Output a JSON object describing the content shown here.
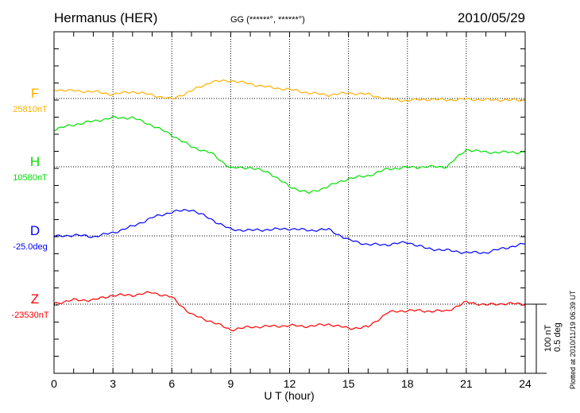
{
  "header": {
    "station": "Hermanus (HER)",
    "coords": "GG (******°, ******°)",
    "date": "2010/05/29"
  },
  "footer": {
    "plotted": "Plotted at 2010/11/19 06:39 UT"
  },
  "scale": {
    "nt": "100 nT",
    "deg": "0.5 deg"
  },
  "chart_data": {
    "type": "line",
    "xlabel": "U T (hour)",
    "xlim": [
      0,
      24
    ],
    "xticks": [
      "0",
      "3",
      "6",
      "9",
      "12",
      "15",
      "18",
      "21",
      "24"
    ],
    "x": [
      0,
      1,
      2,
      3,
      4,
      5,
      6,
      7,
      8,
      9,
      10,
      11,
      12,
      13,
      14,
      15,
      16,
      17,
      18,
      19,
      20,
      21,
      22,
      23,
      24
    ],
    "grid": true,
    "series": [
      {
        "name": "F",
        "baseline": "25810nT",
        "unit": "nT",
        "color": "#ffb000",
        "values": [
          13,
          11,
          10,
          6,
          10,
          5,
          -1,
          11,
          24,
          26,
          21,
          16,
          13,
          8,
          5,
          8,
          6,
          -1,
          -3,
          -1,
          -2,
          -1,
          -2,
          -2,
          -3
        ]
      },
      {
        "name": "H",
        "baseline": "10580nT",
        "unit": "nT",
        "color": "#00e000",
        "values": [
          54,
          61,
          66,
          71,
          71,
          60,
          46,
          29,
          20,
          -2,
          -1,
          -9,
          -29,
          -38,
          -28,
          -17,
          -13,
          -3,
          -1,
          0,
          0,
          25,
          21,
          21,
          21
        ]
      },
      {
        "name": "D",
        "baseline": "-25.0deg",
        "unit": "deg",
        "color": "#0000ff",
        "values": [
          -0.006,
          0.006,
          -0.006,
          0.023,
          0.069,
          0.132,
          0.173,
          0.19,
          0.121,
          0.046,
          0.04,
          0.046,
          0.052,
          0.04,
          0.046,
          -0.029,
          -0.063,
          -0.063,
          -0.046,
          -0.092,
          -0.104,
          -0.121,
          -0.121,
          -0.086,
          -0.058
        ]
      },
      {
        "name": "Z",
        "baseline": "-23530nT",
        "unit": "nT",
        "color": "#ff0000",
        "values": [
          1,
          6,
          6,
          13,
          13,
          17,
          10,
          -15,
          -25,
          -37,
          -33,
          -32,
          -31,
          -32,
          -29,
          -35,
          -33,
          -12,
          -9,
          -10,
          -10,
          3,
          -1,
          1,
          0
        ]
      }
    ]
  }
}
